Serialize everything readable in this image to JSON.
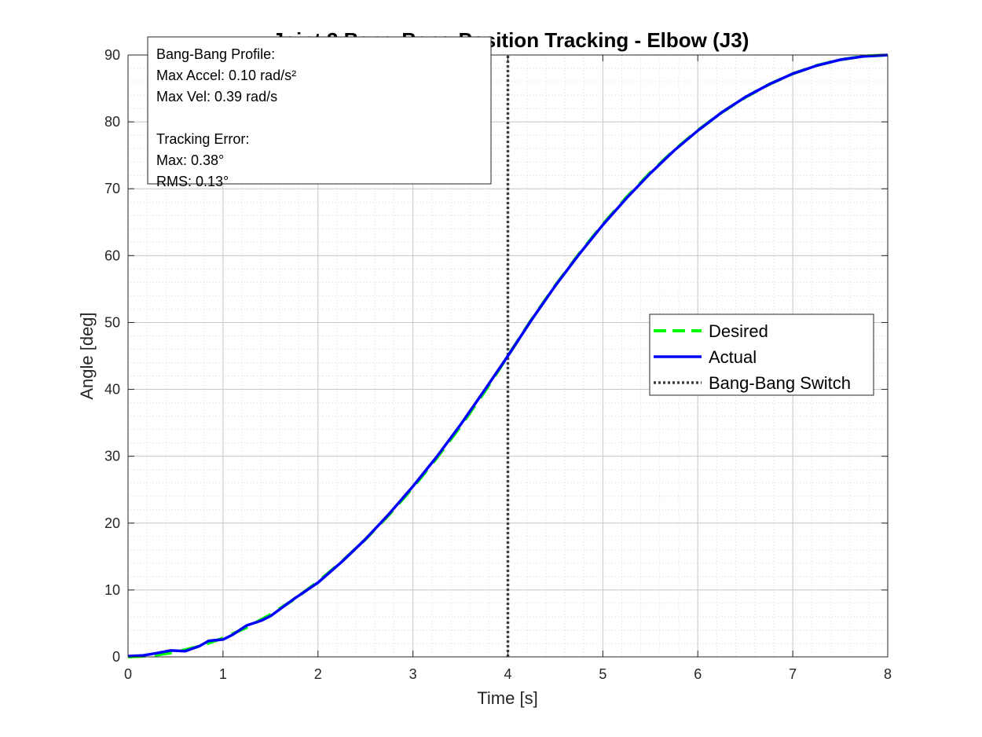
{
  "chart_data": {
    "type": "line",
    "title": "Joint 3 Bang-Bang Position Tracking - Elbow (J3)",
    "xlabel": "Time [s]",
    "ylabel": "Angle [deg]",
    "xlim": [
      0,
      8
    ],
    "ylim": [
      0,
      90
    ],
    "xticks": [
      0,
      1,
      2,
      3,
      4,
      5,
      6,
      7,
      8
    ],
    "yticks": [
      0,
      10,
      20,
      30,
      40,
      50,
      60,
      70,
      80,
      90
    ],
    "grid": true,
    "minor_grid": true,
    "legend_position": "center-right",
    "series": [
      {
        "name": "Desired",
        "color": "#00ff00",
        "style": "dashed",
        "x": [
          0,
          0.25,
          0.5,
          0.75,
          1,
          1.25,
          1.5,
          1.75,
          2,
          2.25,
          2.5,
          2.75,
          3,
          3.25,
          3.5,
          3.75,
          4,
          4.25,
          4.5,
          4.75,
          5,
          5.25,
          5.5,
          5.75,
          6,
          6.25,
          6.5,
          6.75,
          7,
          7.25,
          7.5,
          7.75,
          8
        ],
        "y": [
          0,
          0.18,
          0.7,
          1.58,
          2.81,
          4.39,
          6.33,
          8.61,
          11.25,
          14.24,
          17.58,
          21.27,
          25.31,
          29.71,
          34.45,
          39.55,
          45.0,
          50.45,
          55.55,
          60.29,
          64.69,
          68.73,
          72.42,
          75.76,
          78.75,
          81.39,
          83.67,
          85.61,
          87.19,
          88.42,
          89.3,
          89.82,
          90.0
        ]
      },
      {
        "name": "Actual",
        "color": "#0000ff",
        "style": "solid",
        "x": [
          0,
          0.15,
          0.3,
          0.45,
          0.6,
          0.75,
          0.85,
          1.0,
          1.1,
          1.25,
          1.4,
          1.5,
          1.75,
          2.0,
          2.25,
          2.5,
          2.75,
          3.0,
          3.25,
          3.5,
          3.75,
          4.0,
          4.25,
          4.5,
          4.75,
          5.0,
          5.25,
          5.5,
          5.75,
          6.0,
          6.25,
          6.5,
          6.75,
          7.0,
          7.25,
          7.5,
          7.75,
          8.0
        ],
        "y": [
          0.1,
          0.2,
          0.55,
          0.95,
          0.85,
          1.6,
          2.4,
          2.6,
          3.3,
          4.7,
          5.4,
          6.1,
          8.7,
          11.1,
          14.2,
          17.6,
          21.4,
          25.5,
          29.9,
          34.7,
          39.8,
          45.0,
          50.4,
          55.5,
          60.2,
          64.6,
          68.6,
          72.3,
          75.7,
          78.7,
          81.4,
          83.7,
          85.6,
          87.2,
          88.4,
          89.3,
          89.8,
          90.0
        ]
      },
      {
        "name": "Bang-Bang Switch",
        "color": "#404040",
        "style": "dotted",
        "x": [
          4,
          4
        ],
        "y": [
          0,
          90
        ]
      }
    ],
    "annotation_lines": [
      "Bang-Bang Profile:",
      "Max Accel: 0.10 rad/s²",
      "Max Vel: 0.39 rad/s",
      "",
      "Tracking Error:",
      "Max: 0.38°",
      "RMS: 0.13°"
    ]
  }
}
